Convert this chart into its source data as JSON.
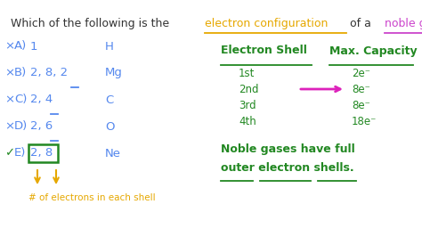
{
  "bg_color": "#ffffff",
  "title_segments": [
    {
      "text": "Which of the following is the ",
      "color": "#333333",
      "underline": false
    },
    {
      "text": "electron configuration",
      "color": "#e6a800",
      "underline": true
    },
    {
      "text": " of a ",
      "color": "#333333",
      "underline": false
    },
    {
      "text": "noble gas",
      "color": "#cc44cc",
      "underline": true
    },
    {
      "text": "?",
      "color": "#333333",
      "underline": false
    }
  ],
  "options": [
    {
      "letter": "A",
      "value": "1",
      "element": "H",
      "correct": false,
      "underline_last": false
    },
    {
      "letter": "B",
      "value": "2, 8, 2",
      "element": "Mg",
      "correct": false,
      "underline_last": true
    },
    {
      "letter": "C",
      "value": "2, 4",
      "element": "C",
      "correct": false,
      "underline_last": true
    },
    {
      "letter": "D",
      "value": "2, 6",
      "element": "O",
      "correct": false,
      "underline_last": true
    },
    {
      "letter": "E",
      "value": "2, 8",
      "element": "Ne",
      "correct": true,
      "underline_last": false,
      "box": true
    }
  ],
  "option_color": "#5588ee",
  "element_color": "#5588ee",
  "correct_mark": "✓",
  "wrong_mark": "×",
  "correct_mark_color": "#228822",
  "wrong_mark_color": "#5588ee",
  "shell_header": "Electron Shell",
  "capacity_header": "Max. Capacity",
  "header_color": "#228822",
  "shells": [
    "1st",
    "2nd",
    "3rd",
    "4th"
  ],
  "capacities": [
    "2e⁻",
    "8e⁻",
    "8e⁻",
    "18e⁻"
  ],
  "shell_color": "#228822",
  "arrow_color": "#dd22bb",
  "annotation_color": "#e6a800",
  "annotation_text": "# of electrons in each shell",
  "noble_line1": "Noble gases have full",
  "noble_line2": "outer electron shells.",
  "noble_color": "#228822",
  "fig_width": 4.74,
  "fig_height": 2.66,
  "dpi": 100
}
